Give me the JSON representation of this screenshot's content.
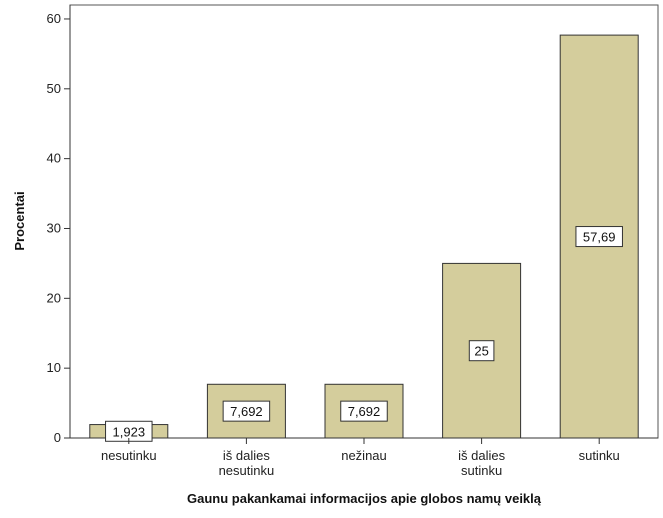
{
  "chart_data": {
    "type": "bar",
    "categories": [
      [
        "nesutinku"
      ],
      [
        "iš dalies",
        "nesutinku"
      ],
      [
        "nežinau"
      ],
      [
        "iš dalies",
        "sutinku"
      ],
      [
        "sutinku"
      ]
    ],
    "values": [
      1.923,
      7.692,
      7.692,
      25,
      57.69
    ],
    "data_labels": [
      "1,923",
      "7,692",
      "7,692",
      "25",
      "57,69"
    ],
    "ylabel": "Procentai",
    "xlabel": "Gaunu pakankamai informacijos apie globos namų veiklą",
    "ylim": [
      0,
      62
    ],
    "yticks": [
      "0",
      "10",
      "20",
      "30",
      "40",
      "50",
      "60"
    ],
    "grid": false,
    "colors": {
      "bar": "#d4cd9c",
      "bar_stroke": "#333333",
      "frame": "#555555"
    }
  }
}
